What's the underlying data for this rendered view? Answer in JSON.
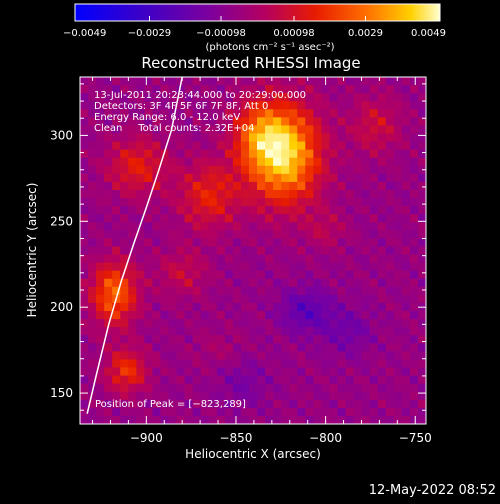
{
  "chart_data": {
    "type": "heatmap",
    "title": "Reconstructed RHESSI Image",
    "xlabel": "Heliocentric X (arcsec)",
    "ylabel": "Heliocentric Y (arcsec)",
    "xlim": [
      -937,
      -744
    ],
    "ylim": [
      132,
      334
    ],
    "xticks": [
      -900,
      -850,
      -800,
      -750
    ],
    "yticks": [
      150,
      200,
      250,
      300
    ],
    "xtick_labels": [
      "−900",
      "−850",
      "−800",
      "−750"
    ],
    "ytick_labels": [
      "150",
      "200",
      "250",
      "300"
    ],
    "colorbar": {
      "min": -0.0049,
      "max": 0.0049,
      "ticks": [
        -0.0049,
        -0.0029,
        -0.00098,
        0.00098,
        0.0029,
        0.0049
      ],
      "tick_labels": [
        "−0.0049",
        "−0.0029",
        "−0.00098",
        "0.00098",
        "0.0029",
        "0.0049"
      ],
      "unit_label": "(photons cm⁻² s⁻¹ asec⁻²)"
    },
    "annotations": [
      "13-Jul-2011 20:23:44.000 to 20:29:00.000",
      "Detectors: 3F 4F 5F 6F 7F 8F, Att 0",
      "Energy Range: 6.0 - 12.0 keV",
      "Clean     Total counts: 2.32E+04"
    ],
    "peak_label": "Position of Peak = [−823,289]",
    "peak": {
      "x": -823,
      "y": 289,
      "value": 0.0049
    },
    "sources": [
      {
        "x": -823,
        "y": 289,
        "sx": 14,
        "sy": 20,
        "amp": 0.0049
      },
      {
        "x": -838,
        "y": 300,
        "sx": 10,
        "sy": 14,
        "amp": 0.0022
      },
      {
        "x": -865,
        "y": 265,
        "sx": 12,
        "sy": 14,
        "amp": 0.0021
      },
      {
        "x": -905,
        "y": 282,
        "sx": 12,
        "sy": 12,
        "amp": 0.002
      },
      {
        "x": -918,
        "y": 208,
        "sx": 9,
        "sy": 13,
        "amp": 0.0033
      },
      {
        "x": -911,
        "y": 163,
        "sx": 8,
        "sy": 9,
        "amp": 0.0024
      },
      {
        "x": -880,
        "y": 220,
        "sx": 10,
        "sy": 10,
        "amp": 0.0012
      },
      {
        "x": -772,
        "y": 306,
        "sx": 10,
        "sy": 12,
        "amp": 0.0014
      },
      {
        "x": -800,
        "y": 245,
        "sx": 8,
        "sy": 8,
        "amp": 0.0009
      },
      {
        "x": -860,
        "y": 175,
        "sx": 10,
        "sy": 8,
        "amp": 0.0005
      }
    ],
    "negative_regions": [
      {
        "x": -811,
        "y": 198,
        "sx": 10,
        "sy": 9,
        "amp": -0.0016
      },
      {
        "x": -788,
        "y": 186,
        "sx": 10,
        "sy": 10,
        "amp": -0.001
      },
      {
        "x": -846,
        "y": 156,
        "sx": 10,
        "sy": 10,
        "amp": -0.0008
      }
    ],
    "limb_curve": {
      "x": [
        -933,
        -928,
        -921,
        -914,
        -907,
        -900,
        -893,
        -886,
        -880
      ],
      "y": [
        138,
        160,
        190,
        215,
        237,
        258,
        280,
        303,
        334
      ]
    }
  },
  "footer": {
    "timestamp": "12-May-2022 08:52"
  }
}
